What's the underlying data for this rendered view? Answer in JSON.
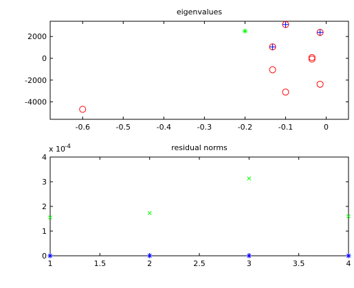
{
  "chart_data": [
    {
      "type": "scatter",
      "title": "eigenvalues",
      "xlabel": "",
      "ylabel": "",
      "xlim": [
        -0.68,
        0.055
      ],
      "ylim": [
        -5600,
        3400
      ],
      "xticks": [
        -0.6,
        -0.5,
        -0.4,
        -0.3,
        -0.2,
        -0.1,
        0
      ],
      "xtick_labels": [
        "-0.6",
        "-0.5",
        "-0.4",
        "-0.3",
        "-0.2",
        "-0.1",
        "0"
      ],
      "yticks": [
        -4000,
        -2000,
        0,
        2000
      ],
      "ytick_labels": [
        "-4000",
        "-2000",
        "0",
        "2000"
      ],
      "grid": false,
      "series": [
        {
          "marker": "circle",
          "color": "#ff0000",
          "points": [
            [
              -0.6,
              -4680
            ],
            [
              -0.132,
              1050
            ],
            [
              -0.132,
              -1050
            ],
            [
              -0.1,
              3100
            ],
            [
              -0.1,
              -3100
            ],
            [
              -0.035,
              70
            ],
            [
              -0.035,
              -70
            ],
            [
              -0.015,
              2380
            ],
            [
              -0.015,
              -2380
            ]
          ]
        },
        {
          "marker": "plus",
          "color": "#0000ff",
          "points": [
            [
              -0.132,
              1050
            ],
            [
              -0.1,
              3100
            ],
            [
              -0.015,
              2380
            ]
          ]
        },
        {
          "marker": "star",
          "color": "#00ff00",
          "points": [
            [
              -0.2,
              2500
            ]
          ]
        }
      ]
    },
    {
      "type": "scatter",
      "title": "residual norms",
      "xlabel": "",
      "ylabel": "",
      "xlim": [
        1,
        4
      ],
      "ylim": [
        0,
        4
      ],
      "y_multiplier": "x 10",
      "y_multiplier_exponent": "-4",
      "xticks": [
        1,
        1.5,
        2,
        2.5,
        3,
        3.5,
        4
      ],
      "xtick_labels": [
        "1",
        "1.5",
        "2",
        "2.5",
        "3",
        "3.5",
        "4"
      ],
      "yticks": [
        0,
        1,
        2,
        3,
        4
      ],
      "ytick_labels": [
        "0",
        "1",
        "2",
        "3",
        "4"
      ],
      "grid": false,
      "series": [
        {
          "marker": "x",
          "color": "#00ff00",
          "points": [
            [
              1,
              1.55
            ],
            [
              2,
              1.73
            ],
            [
              3,
              3.13
            ],
            [
              4,
              1.6
            ]
          ]
        },
        {
          "marker": "star",
          "color": "#0000ff",
          "points": [
            [
              1,
              0
            ],
            [
              2,
              0
            ],
            [
              3,
              0
            ],
            [
              4,
              0
            ]
          ]
        }
      ]
    }
  ]
}
